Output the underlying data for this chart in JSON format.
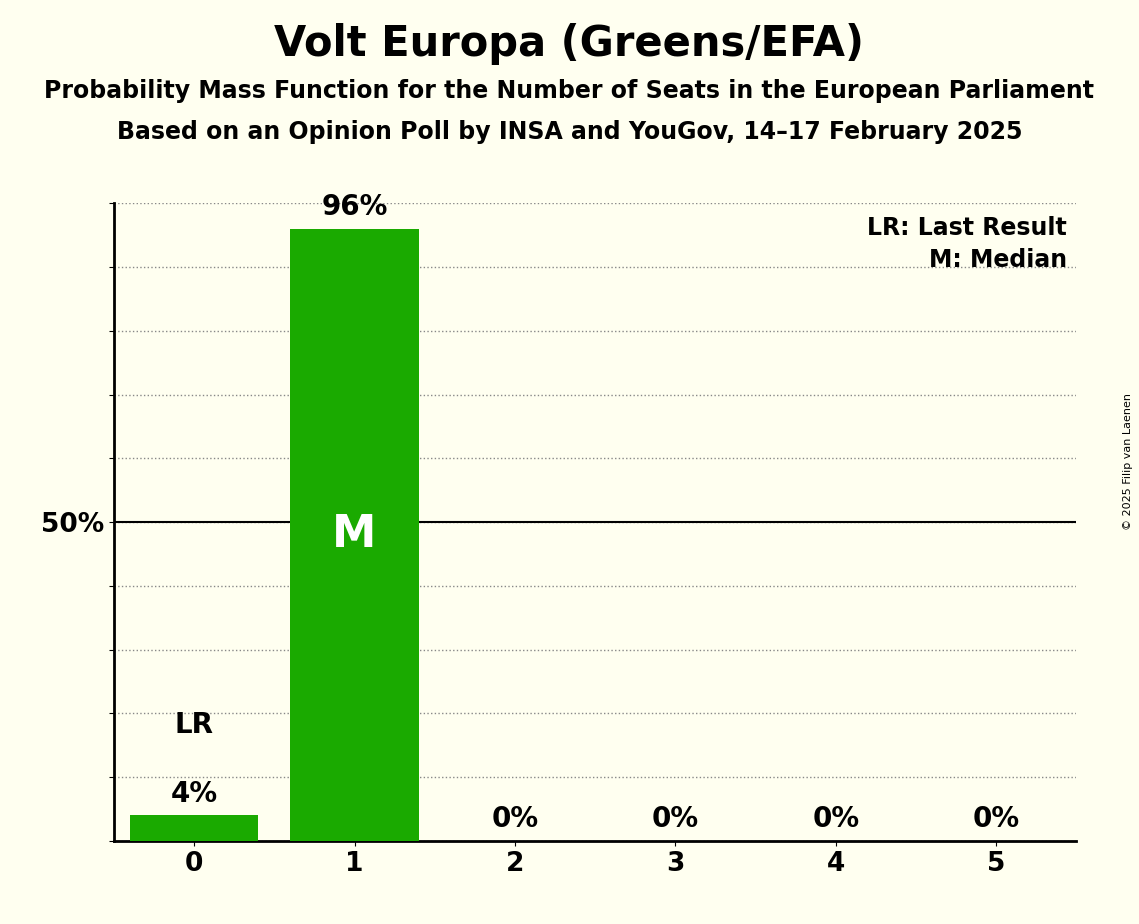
{
  "title": "Volt Europa (Greens/EFA)",
  "subtitle1": "Probability Mass Function for the Number of Seats in the European Parliament",
  "subtitle2": "Based on an Opinion Poll by INSA and YouGov, 14–17 February 2025",
  "copyright": "© 2025 Filip van Laenen",
  "categories": [
    0,
    1,
    2,
    3,
    4,
    5
  ],
  "values": [
    0.04,
    0.96,
    0.0,
    0.0,
    0.0,
    0.0
  ],
  "bar_labels": [
    "4%",
    "96%",
    "0%",
    "0%",
    "0%",
    "0%"
  ],
  "bar_color": "#1aaa00",
  "background_color": "#fffff0",
  "median_seat": 1,
  "lr_seat": 0,
  "lr_label": "LR",
  "median_label": "M",
  "legend_lr": "LR: Last Result",
  "legend_m": "M: Median",
  "ylim": [
    0,
    1.0
  ],
  "yticks": [
    0.0,
    0.1,
    0.2,
    0.3,
    0.4,
    0.5,
    0.6,
    0.7,
    0.8,
    0.9,
    1.0
  ],
  "title_fontsize": 30,
  "subtitle_fontsize": 17,
  "tick_fontsize": 19,
  "bar_label_fontsize": 20,
  "legend_fontsize": 17,
  "M_fontsize": 32,
  "lr_fontsize": 20
}
